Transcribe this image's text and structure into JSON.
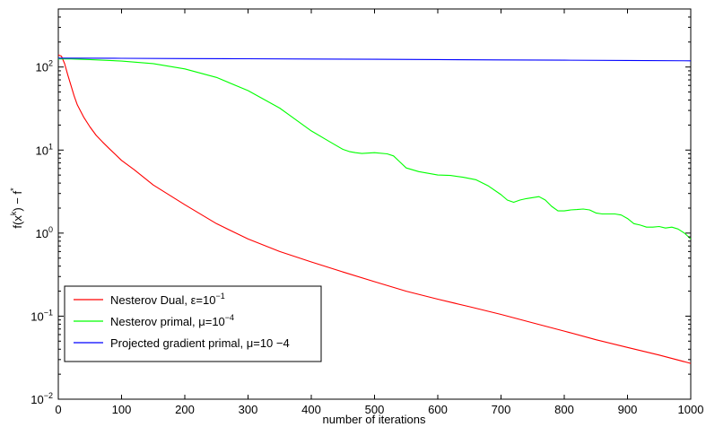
{
  "chart_data": {
    "type": "line",
    "title": "",
    "xlabel": "number of iterations",
    "ylabel": "f(x^k) − f^*",
    "ylabel_parts": {
      "lead": "f(x",
      "k": "k",
      "mid": ") − f",
      "star": "*"
    },
    "xlim": [
      0,
      1000
    ],
    "ylim": [
      0.01,
      500
    ],
    "yscale": "log",
    "grid": false,
    "legend_position": "bottom-left",
    "x_ticks": [
      0,
      100,
      200,
      300,
      400,
      500,
      600,
      700,
      800,
      900,
      1000
    ],
    "x_tick_labels": [
      "0",
      "100",
      "200",
      "300",
      "400",
      "500",
      "600",
      "700",
      "800",
      "900",
      "1000"
    ],
    "y_ticks": [
      0.01,
      0.1,
      1,
      10,
      100
    ],
    "y_tick_labels": [
      {
        "base": "10",
        "exp": "−2"
      },
      {
        "base": "10",
        "exp": "−1"
      },
      {
        "base": "10",
        "exp": "0"
      },
      {
        "base": "10",
        "exp": "1"
      },
      {
        "base": "10",
        "exp": "2"
      }
    ],
    "series": [
      {
        "name": "Nesterov Dual, ε=10^−1",
        "legend": {
          "text": "Nesterov Dual, ε=10",
          "exp": "−1"
        },
        "color": "#ff0000",
        "x": [
          0,
          5,
          10,
          15,
          20,
          25,
          30,
          40,
          50,
          60,
          70,
          80,
          100,
          120,
          150,
          200,
          250,
          300,
          350,
          400,
          450,
          500,
          550,
          600,
          650,
          700,
          750,
          800,
          850,
          900,
          950,
          1000
        ],
        "y": [
          140,
          135,
          110,
          80,
          60,
          45,
          35,
          25,
          19,
          15,
          12.5,
          10.5,
          7.5,
          5.8,
          3.8,
          2.2,
          1.3,
          0.85,
          0.6,
          0.45,
          0.34,
          0.26,
          0.2,
          0.16,
          0.13,
          0.105,
          0.083,
          0.066,
          0.052,
          0.042,
          0.034,
          0.027
        ]
      },
      {
        "name": "Nesterov primal, μ=10^−4",
        "legend": {
          "text": "Nesterov primal, μ=10",
          "exp": "−4"
        },
        "color": "#00ff00",
        "x": [
          0,
          20,
          50,
          100,
          150,
          200,
          250,
          300,
          350,
          400,
          430,
          450,
          460,
          470,
          480,
          500,
          520,
          530,
          540,
          550,
          570,
          600,
          620,
          640,
          660,
          680,
          700,
          710,
          720,
          730,
          740,
          760,
          770,
          780,
          790,
          800,
          810,
          820,
          830,
          840,
          850,
          860,
          880,
          890,
          900,
          910,
          920,
          930,
          940,
          950,
          960,
          970,
          980,
          990,
          1000
        ],
        "y": [
          125,
          125,
          123,
          118,
          110,
          95,
          75,
          52,
          32,
          17,
          12.5,
          10.2,
          9.6,
          9.3,
          9.1,
          9.3,
          9.0,
          8.5,
          7.2,
          6.1,
          5.5,
          5.0,
          4.95,
          4.7,
          4.4,
          3.7,
          2.9,
          2.5,
          2.35,
          2.5,
          2.6,
          2.75,
          2.5,
          2.1,
          1.85,
          1.85,
          1.9,
          1.92,
          1.95,
          1.9,
          1.75,
          1.7,
          1.7,
          1.65,
          1.5,
          1.3,
          1.25,
          1.18,
          1.18,
          1.2,
          1.15,
          1.18,
          1.12,
          1.0,
          0.85
        ]
      },
      {
        "name": "Projected gradient primal, μ=10 −4",
        "legend": {
          "text": "Projected gradient primal, μ=10 −4",
          "exp": ""
        },
        "color": "#0000ff",
        "x": [
          0,
          100,
          200,
          300,
          400,
          500,
          600,
          700,
          800,
          900,
          1000
        ],
        "y": [
          128,
          127.3,
          126.5,
          125.7,
          124.8,
          123.8,
          122.8,
          121.8,
          120.8,
          119.8,
          118.8
        ]
      }
    ]
  }
}
